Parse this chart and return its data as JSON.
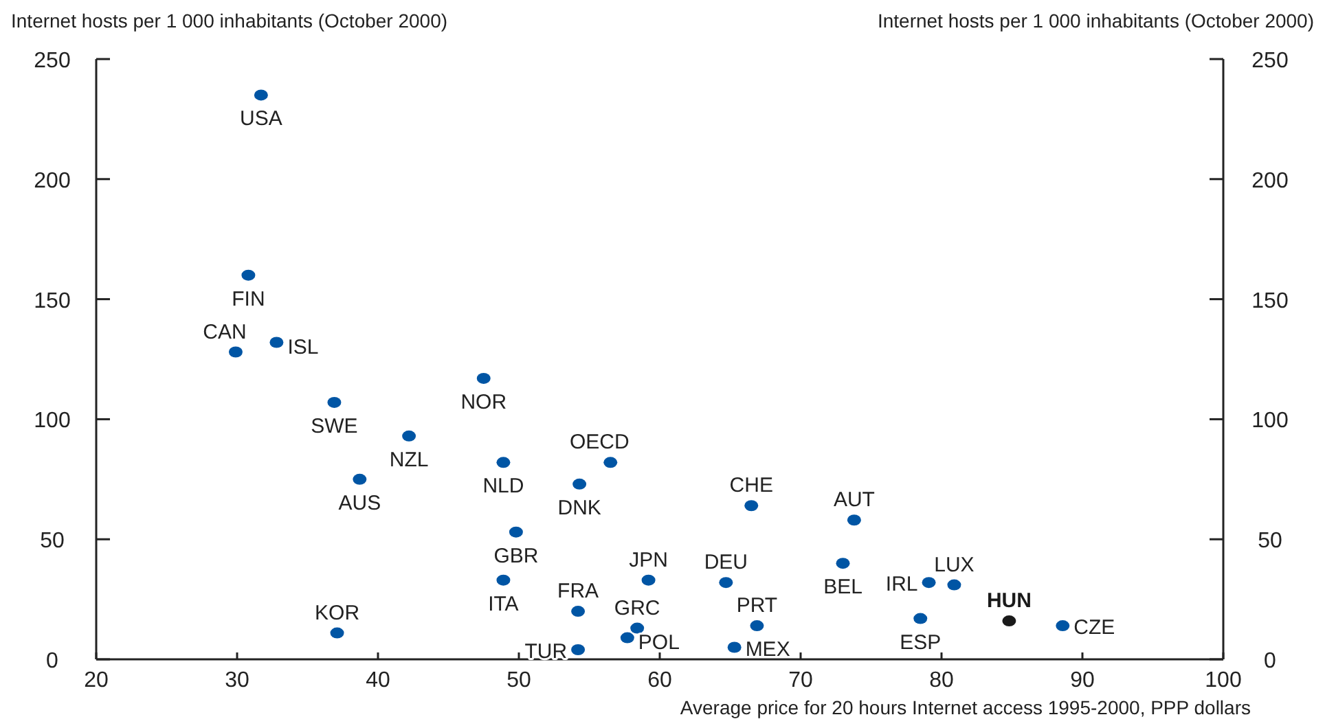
{
  "chart_data": {
    "type": "scatter",
    "ylabel": "Internet hosts per 1 000 inhabitants (October 2000)",
    "y2label": "Internet hosts per 1 000 inhabitants (October 2000)",
    "xlabel": "Average price for 20 hours Internet access 1995-2000, PPP dollars",
    "xlim": [
      20,
      100
    ],
    "xticks": [
      20,
      30,
      40,
      50,
      60,
      70,
      80,
      90,
      100
    ],
    "ylim": [
      0,
      250
    ],
    "yticks": [
      0,
      50,
      100,
      150,
      200,
      250
    ],
    "y2lim": [
      0,
      250
    ],
    "y2ticks": [
      0,
      50,
      100,
      150,
      200,
      250
    ],
    "grid": false,
    "marker": "circle",
    "series": [
      {
        "x": [
          31.7,
          30.8,
          29.9,
          32.8,
          36.9,
          42.2,
          38.7,
          47.5,
          48.9,
          56.5,
          54.3,
          49.8,
          48.9,
          37.1,
          54.2,
          59.2,
          58.4,
          54.2,
          57.7,
          64.7,
          65.3,
          66.9,
          66.5,
          73.8,
          73.0,
          79.1,
          80.9,
          78.5,
          84.8,
          88.6
        ],
        "values": [
          235,
          160,
          128,
          132,
          107,
          93,
          75,
          117,
          82,
          82,
          73,
          53,
          33,
          11,
          20,
          33,
          13,
          4,
          9,
          32,
          5,
          14,
          64,
          58,
          40,
          32,
          31,
          17,
          16,
          14
        ],
        "colors": [
          "#0055a4",
          "#0055a4",
          "#0055a4",
          "#0055a4",
          "#0055a4",
          "#0055a4",
          "#0055a4",
          "#0055a4",
          "#0055a4",
          "#0055a4",
          "#0055a4",
          "#0055a4",
          "#0055a4",
          "#0055a4",
          "#0055a4",
          "#0055a4",
          "#0055a4",
          "#0055a4",
          "#0055a4",
          "#0055a4",
          "#0055a4",
          "#0055a4",
          "#0055a4",
          "#0055a4",
          "#0055a4",
          "#0055a4",
          "#0055a4",
          "#0055a4",
          "#1a1a1a",
          "#0055a4"
        ]
      }
    ],
    "annotations": [
      {
        "text": "USA",
        "x": 31.7,
        "y": 235
      },
      {
        "text": "FIN",
        "x": 30.8,
        "y": 160
      },
      {
        "text": "CAN",
        "x": 29.9,
        "y": 128
      },
      {
        "text": "ISL",
        "x": 32.8,
        "y": 132
      },
      {
        "text": "SWE",
        "x": 36.9,
        "y": 107
      },
      {
        "text": "NZL",
        "x": 42.2,
        "y": 93
      },
      {
        "text": "AUS",
        "x": 38.7,
        "y": 75
      },
      {
        "text": "NOR",
        "x": 47.5,
        "y": 117
      },
      {
        "text": "NLD",
        "x": 48.9,
        "y": 82
      },
      {
        "text": "OECD",
        "x": 56.5,
        "y": 82
      },
      {
        "text": "DNK",
        "x": 54.3,
        "y": 73
      },
      {
        "text": "GBR",
        "x": 49.8,
        "y": 53
      },
      {
        "text": "ITA",
        "x": 48.9,
        "y": 33
      },
      {
        "text": "KOR",
        "x": 37.1,
        "y": 11
      },
      {
        "text": "FRA",
        "x": 54.2,
        "y": 20
      },
      {
        "text": "JPN",
        "x": 59.2,
        "y": 33
      },
      {
        "text": "GRC",
        "x": 58.4,
        "y": 13
      },
      {
        "text": "TUR",
        "x": 54.2,
        "y": 4
      },
      {
        "text": "POL",
        "x": 57.7,
        "y": 9
      },
      {
        "text": "DEU",
        "x": 64.7,
        "y": 32
      },
      {
        "text": "MEX",
        "x": 65.3,
        "y": 5
      },
      {
        "text": "PRT",
        "x": 66.9,
        "y": 14
      },
      {
        "text": "CHE",
        "x": 66.5,
        "y": 64
      },
      {
        "text": "AUT",
        "x": 73.8,
        "y": 58
      },
      {
        "text": "BEL",
        "x": 73.0,
        "y": 40
      },
      {
        "text": "IRL",
        "x": 79.1,
        "y": 32
      },
      {
        "text": "LUX",
        "x": 80.9,
        "y": 31
      },
      {
        "text": "ESP",
        "x": 78.5,
        "y": 17
      },
      {
        "text": "HUN",
        "x": 84.8,
        "y": 16
      },
      {
        "text": "CZE",
        "x": 88.6,
        "y": 14
      }
    ]
  }
}
